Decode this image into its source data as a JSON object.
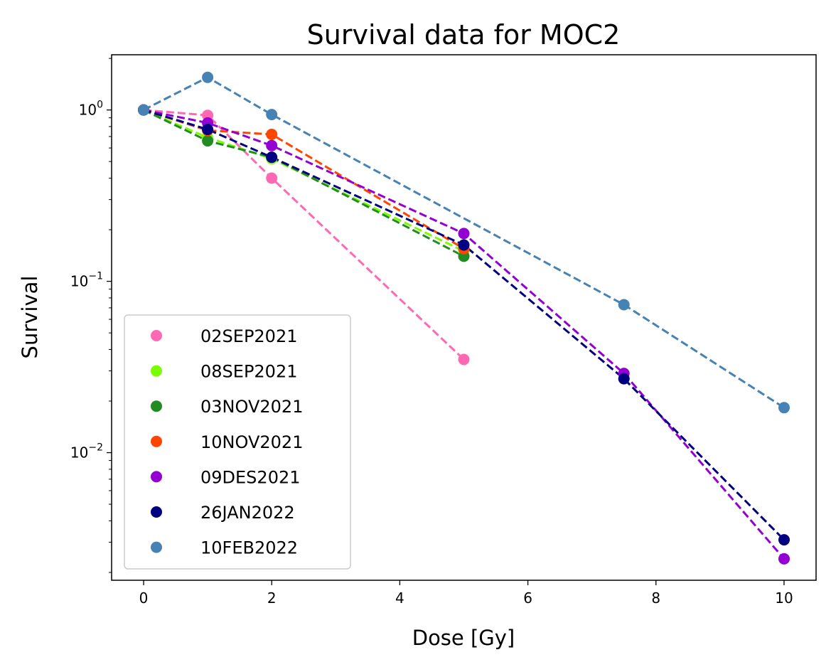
{
  "chart_data": {
    "type": "scatter",
    "title": "Survival data for MOC2",
    "xlabel": "Dose [Gy]",
    "ylabel": "Survival",
    "xlim": [
      -0.5,
      10.5
    ],
    "ylim": [
      0.0018,
      2.1
    ],
    "yscale": "log",
    "x_ticks": [
      "0",
      "2",
      "4",
      "6",
      "8",
      "10"
    ],
    "y_ticks": [
      {
        "base": "10",
        "exp": "0"
      },
      {
        "base": "10",
        "exp": "−1"
      },
      {
        "base": "10",
        "exp": "−2"
      }
    ],
    "grid": false,
    "legend_position": "lower-left",
    "line_style": "dashed",
    "series": [
      {
        "name": "02SEP2021",
        "color": "#ff69b4",
        "x": [
          0,
          1,
          2,
          5
        ],
        "y": [
          1.0,
          0.93,
          0.4,
          0.035
        ]
      },
      {
        "name": "08SEP2021",
        "color": "#7cfc00",
        "x": [
          0,
          1,
          2,
          5
        ],
        "y": [
          1.0,
          0.69,
          0.52,
          0.15
        ]
      },
      {
        "name": "03NOV2021",
        "color": "#228b22",
        "x": [
          0,
          1,
          2,
          5
        ],
        "y": [
          1.0,
          0.66,
          0.53,
          0.14
        ]
      },
      {
        "name": "10NOV2021",
        "color": "#ff4500",
        "x": [
          0,
          1,
          2,
          5
        ],
        "y": [
          1.0,
          0.76,
          0.72,
          0.155
        ]
      },
      {
        "name": "09DES2021",
        "color": "#9400d3",
        "x": [
          0,
          1,
          2,
          5,
          7.5,
          10
        ],
        "y": [
          1.0,
          0.84,
          0.62,
          0.19,
          0.029,
          0.0024
        ]
      },
      {
        "name": "26JAN2022",
        "color": "#000080",
        "x": [
          0,
          1,
          2,
          5,
          7.5,
          10
        ],
        "y": [
          1.0,
          0.77,
          0.53,
          0.163,
          0.027,
          0.0031
        ]
      },
      {
        "name": "10FEB2022",
        "color": "#4682b4",
        "x": [
          0,
          1,
          2,
          7.5,
          10
        ],
        "y": [
          1.0,
          1.55,
          0.94,
          0.073,
          0.0183
        ]
      }
    ]
  }
}
